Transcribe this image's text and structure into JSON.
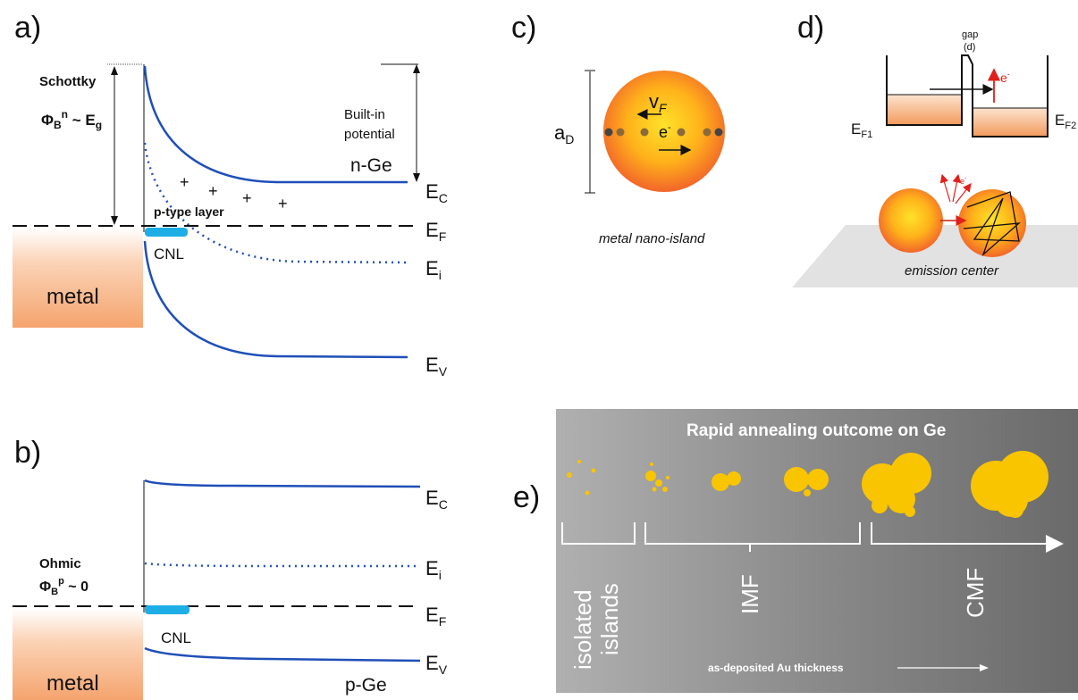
{
  "panels": {
    "a": {
      "label": "a)",
      "schottky": "Schottky",
      "phi_main": "Φ",
      "phi_sub": "B",
      "phi_sup": "n",
      "phi_rest": " ~ E",
      "phi_rest_sub": "g",
      "built_in_1": "Built-in",
      "built_in_2": "potential",
      "n_ge": "n-Ge",
      "p_type_layer": "p-type layer",
      "plus": "+",
      "cnl": "CNL",
      "metal": "metal",
      "ec": "E",
      "ec_sub": "C",
      "ef": "E",
      "ef_sub": "F",
      "ei": "E",
      "ei_sub": "i",
      "ev": "E",
      "ev_sub": "V"
    },
    "b": {
      "label": "b)",
      "ohmic": "Ohmic",
      "phi_main": "Φ",
      "phi_sub": "B",
      "phi_sup": "p",
      "phi_rest": " ~ 0",
      "cnl": "CNL",
      "metal": "metal",
      "p_ge": "p-Ge",
      "ec": "E",
      "ec_sub": "C",
      "ei": "E",
      "ei_sub": "i",
      "ef": "E",
      "ef_sub": "F",
      "ev": "E",
      "ev_sub": "V"
    },
    "c": {
      "label": "c)",
      "a_d": "a",
      "a_d_sub": "D",
      "v_f": "v",
      "v_f_sub": "F",
      "e_minus": "e",
      "e_minus_sup": "-",
      "caption": "metal nano-island"
    },
    "d": {
      "label": "d)",
      "gap": "gap",
      "gap_d": "(d)",
      "ef1": "E",
      "ef1_sub": "F1",
      "ef2": "E",
      "ef2_sub": "F2",
      "e_minus": "e",
      "e_minus_sup": "-",
      "emission_center": "emission center"
    },
    "e": {
      "label": "e)",
      "title": "Rapid annealing outcome on Ge",
      "isolated_1": "isolated",
      "isolated_2": "islands",
      "imf": "IMF",
      "cmf": "CMF",
      "thickness": "as-deposited Au thickness"
    }
  },
  "colors": {
    "band_blue": "#1f4fb8",
    "cnl_cyan": "#1eaee6",
    "metal_orange": "#f5a46e",
    "island_yellow": "#f9c400",
    "electron_red": "#e0201a"
  }
}
